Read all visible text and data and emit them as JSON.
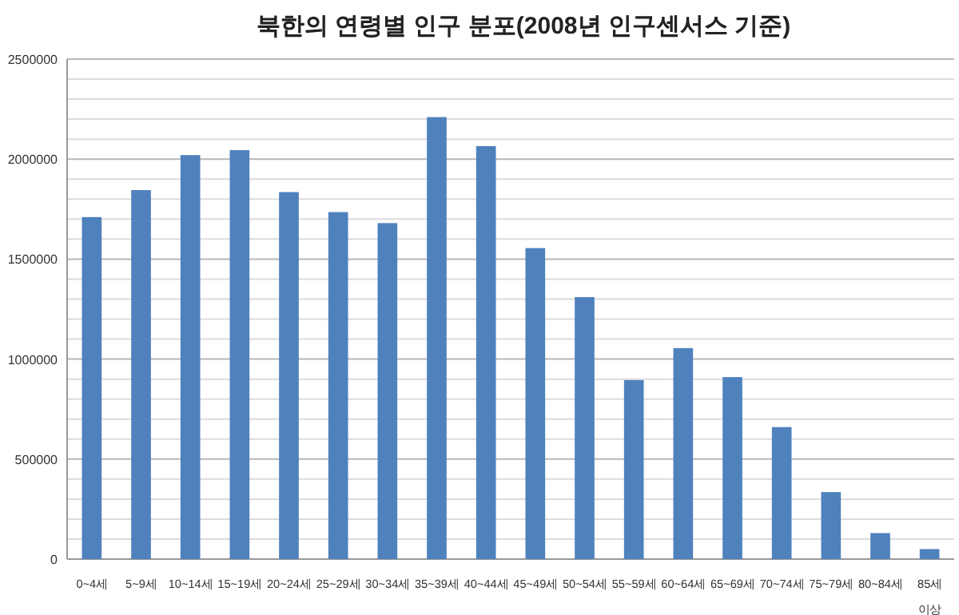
{
  "chart_data": {
    "type": "bar",
    "title": "북한의 연령별 인구 분포(2008년 인구센서스 기준)",
    "categories": [
      "0~4세",
      "5~9세",
      "10~14세",
      "15~19세",
      "20~24세",
      "25~29세",
      "30~34세",
      "35~39세",
      "40~44세",
      "45~49세",
      "50~54세",
      "55~59세",
      "60~64세",
      "65~69세",
      "70~74세",
      "75~79세",
      "80~84세",
      "85세 이상"
    ],
    "values": [
      1710000,
      1845000,
      2020000,
      2045000,
      1835000,
      1735000,
      1680000,
      2210000,
      2065000,
      1555000,
      1310000,
      895000,
      1055000,
      910000,
      660000,
      335000,
      130000,
      50000
    ],
    "color": "#4f81bd",
    "ylim": [
      0,
      2500000
    ],
    "yticks": [
      0,
      {
        "value": 100000,
        "label": null
      },
      {
        "value": 200000,
        "label": null
      },
      {
        "value": 300000,
        "label": null
      },
      {
        "value": 400000,
        "label": null
      },
      500000,
      {
        "value": 600000,
        "label": null
      },
      {
        "value": 700000,
        "label": null
      },
      {
        "value": 800000,
        "label": null
      },
      {
        "value": 900000,
        "label": null
      },
      1000000,
      {
        "value": 1100000,
        "label": null
      },
      {
        "value": 1200000,
        "label": null
      },
      {
        "value": 1300000,
        "label": null
      },
      {
        "value": 1400000,
        "label": null
      },
      1500000,
      {
        "value": 1600000,
        "label": null
      },
      {
        "value": 1700000,
        "label": null
      },
      {
        "value": 1800000,
        "label": null
      },
      {
        "value": 1900000,
        "label": null
      },
      2000000,
      {
        "value": 2100000,
        "label": null
      },
      {
        "value": 2200000,
        "label": null
      },
      {
        "value": 2300000,
        "label": null
      },
      {
        "value": 2400000,
        "label": null
      },
      2500000
    ],
    "grid": true
  }
}
